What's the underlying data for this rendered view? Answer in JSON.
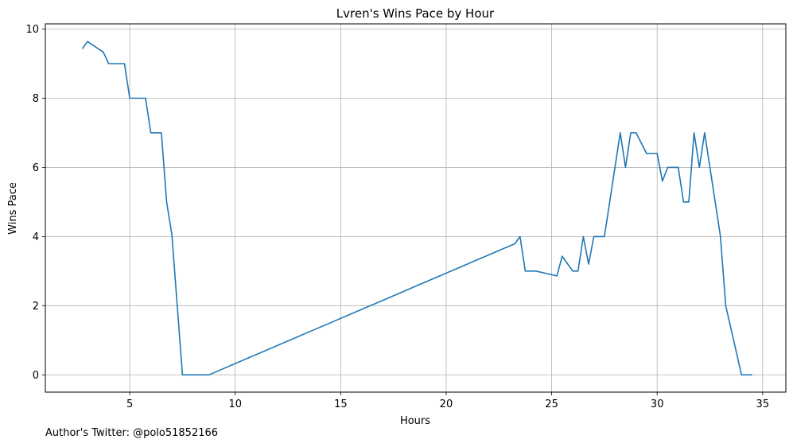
{
  "chart_data": {
    "type": "line",
    "title": "Lvren's Wins Pace by Hour",
    "xlabel": "Hours",
    "ylabel": "Wins Pace",
    "xlim": [
      1.0,
      36.1
    ],
    "ylim": [
      -0.5,
      10.15
    ],
    "xticks": [
      5,
      10,
      15,
      20,
      25,
      30,
      35
    ],
    "yticks": [
      0,
      2,
      4,
      6,
      8,
      10
    ],
    "grid": true,
    "line_color": "#1f77b4",
    "series": [
      {
        "x": [
          2.75,
          3.0,
          3.75,
          4.0,
          4.75,
          5.0,
          5.75,
          6.0,
          6.5,
          6.75,
          7.0,
          7.5,
          8.75,
          23.25,
          23.5,
          23.75,
          24.25,
          25.25,
          25.5,
          26.0,
          26.25,
          26.5,
          26.75,
          27.0,
          27.5,
          28.25,
          28.5,
          28.75,
          29.0,
          29.5,
          30.0,
          30.25,
          30.5,
          31.0,
          31.25,
          31.5,
          31.75,
          32.0,
          32.25,
          33.0,
          33.25,
          34.0,
          34.5
        ],
        "y": [
          9.43,
          9.64,
          9.33,
          9.0,
          9.0,
          8.0,
          8.0,
          7.0,
          7.0,
          5.0,
          4.05,
          0.0,
          0.0,
          3.79,
          4.0,
          3.0,
          3.0,
          2.86,
          3.43,
          3.0,
          3.0,
          4.0,
          3.2,
          4.0,
          4.0,
          7.0,
          6.0,
          7.0,
          7.0,
          6.4,
          6.4,
          5.6,
          6.0,
          6.0,
          5.0,
          5.0,
          7.0,
          6.0,
          7.0,
          4.0,
          2.0,
          0.0,
          0.0
        ]
      }
    ]
  },
  "footer": {
    "caption": "Author's Twitter: @polo51852166"
  }
}
